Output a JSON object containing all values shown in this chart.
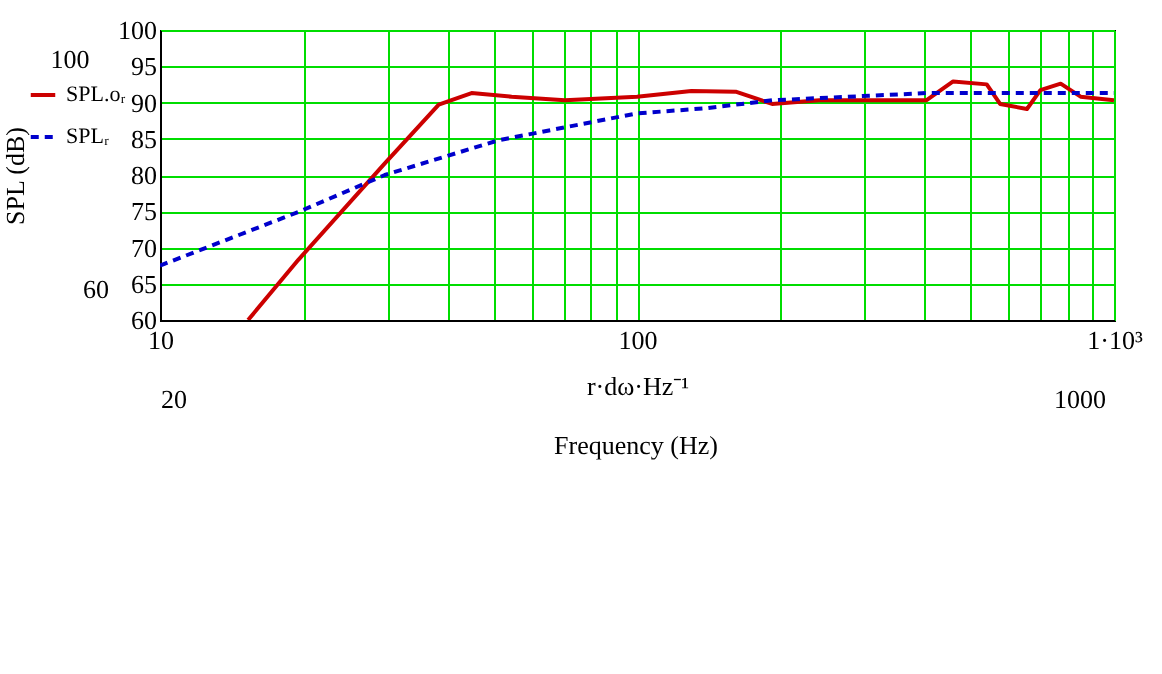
{
  "chart_data": {
    "type": "line",
    "xlabel": "r·dω·Hz⁻¹",
    "ylabel": "SPL (dB)",
    "annotations": [
      "100",
      "60",
      "20",
      "1000",
      "Frequency (Hz)"
    ],
    "log": "x",
    "grid": true,
    "legend": "left",
    "xlim": [
      10,
      1000
    ],
    "ylim": [
      60,
      100
    ],
    "xticks": [
      10,
      {
        "value": 20,
        "label": null
      },
      {
        "value": 30,
        "label": null
      },
      {
        "value": 40,
        "label": null
      },
      {
        "value": 50,
        "label": null
      },
      {
        "value": 60,
        "label": null
      },
      {
        "value": 70,
        "label": null
      },
      {
        "value": 80,
        "label": null
      },
      {
        "value": 90,
        "label": null
      },
      100,
      {
        "value": 200,
        "label": null
      },
      {
        "value": 300,
        "label": null
      },
      {
        "value": 400,
        "label": null
      },
      {
        "value": 500,
        "label": null
      },
      {
        "value": 600,
        "label": null
      },
      {
        "value": 700,
        "label": null
      },
      {
        "value": 800,
        "label": null
      },
      {
        "value": 900,
        "label": null
      },
      {
        "value": 1000,
        "label": "1·10³"
      }
    ],
    "yticks": [
      60,
      65,
      70,
      75,
      80,
      85,
      90,
      95,
      100
    ],
    "series": [
      {
        "name": "SPL.oᵣ",
        "color": "#cc0000",
        "line_style": "solid",
        "x": [
          15.3,
          19.5,
          29.6,
          38.4,
          45,
          54.6,
          70.6,
          100,
          130,
          161,
          192,
          241,
          404,
          460,
          541,
          577,
          657,
          701,
          773,
          851,
          1000
        ],
        "values": [
          60,
          68.3,
          81.6,
          89.7,
          91.3,
          90.8,
          90.3,
          90.8,
          91.6,
          91.5,
          89.8,
          90.3,
          90.3,
          92.9,
          92.5,
          89.8,
          89.1,
          91.7,
          92.6,
          90.8,
          90.3
        ]
      },
      {
        "name": "SPLᵣ",
        "color": "#0000cc",
        "line_style": "dashed",
        "x": [
          10,
          19.5,
          29.6,
          51.3,
          100,
          139,
          192,
          404,
          1000
        ],
        "values": [
          67.5,
          74.9,
          80,
          84.8,
          88.5,
          89.2,
          90.3,
          91.3,
          91.3
        ]
      }
    ]
  }
}
